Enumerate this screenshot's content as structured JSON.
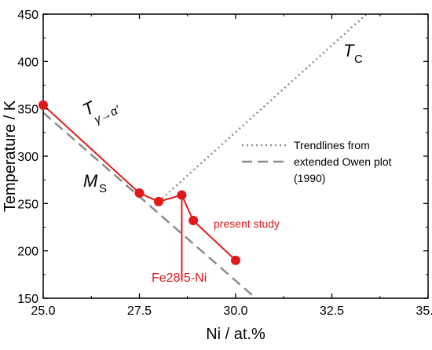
{
  "chart_data": {
    "type": "line",
    "xlabel": "Ni / at.%",
    "ylabel": "Temperature / K",
    "xlim": [
      25.0,
      35.0
    ],
    "ylim": [
      150,
      450
    ],
    "x_ticks": [
      "25.0",
      "27.5",
      "30.0",
      "32.5",
      "35.0"
    ],
    "y_ticks": [
      "150",
      "200",
      "250",
      "300",
      "350",
      "400",
      "450"
    ],
    "grid": false,
    "series": [
      {
        "name": "present study",
        "style": "solid-markers",
        "color": "#e0191b",
        "points": [
          [
            25.0,
            354
          ],
          [
            27.5,
            261
          ],
          [
            28.0,
            252
          ],
          [
            28.6,
            259
          ],
          [
            28.9,
            232
          ],
          [
            30.0,
            190
          ]
        ]
      },
      {
        "name": "Trendlines from extended Owen plot (1990)",
        "style": "dotted",
        "color": "#8c8c8c",
        "points": [
          [
            28.0,
            252
          ],
          [
            33.4,
            450
          ]
        ]
      },
      {
        "name": "Trendlines from extended Owen plot (1990)",
        "style": "dashed",
        "color": "#8c8c8c",
        "points": [
          [
            25.0,
            346
          ],
          [
            30.52,
            150
          ]
        ]
      }
    ],
    "legend": {
      "position": "middle-right",
      "lines": [
        "Trendlines from",
        "extended Owen plot",
        "(1990)"
      ]
    },
    "annotations": {
      "tc_main": "T",
      "tc_sub": "C",
      "ms_main": "M",
      "ms_sub": "S",
      "tga_main": "T",
      "tga_sub": "γ→α'",
      "present_study": "present study",
      "alloy_label": "Fe28.5-Ni",
      "alloy_x": 28.6,
      "alloy_marker_top": 259,
      "alloy_marker_bottom": 169
    }
  }
}
